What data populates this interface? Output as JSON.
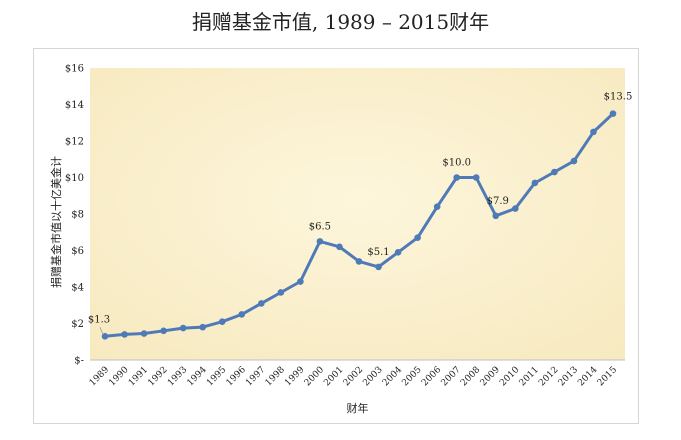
{
  "title": "捐赠基金市值, 1989 – 2015财年",
  "chart_data": {
    "type": "line",
    "title": "捐赠基金市值, 1989 – 2015财年",
    "xlabel": "财年",
    "ylabel": "捐赠基金市值以十亿美金计",
    "categories": [
      "1989",
      "1990",
      "1991",
      "1992",
      "1993",
      "1994",
      "1995",
      "1996",
      "1997",
      "1998",
      "1999",
      "2000",
      "2001",
      "2002",
      "2003",
      "2004",
      "2005",
      "2006",
      "2007",
      "2008",
      "2009",
      "2010",
      "2011",
      "2012",
      "2013",
      "2014",
      "2015"
    ],
    "series": [
      {
        "values": [
          1.3,
          1.4,
          1.45,
          1.6,
          1.75,
          1.8,
          2.1,
          2.5,
          3.1,
          3.7,
          4.3,
          6.5,
          6.2,
          5.4,
          5.1,
          5.9,
          6.7,
          8.4,
          10.0,
          10.0,
          7.9,
          8.3,
          9.7,
          10.3,
          10.9,
          12.5,
          13.5
        ]
      }
    ],
    "data_labels": [
      {
        "index": 0,
        "text": "$1.3"
      },
      {
        "index": 11,
        "text": "$6.5"
      },
      {
        "index": 14,
        "text": "$5.1"
      },
      {
        "index": 18,
        "text": "$10.0"
      },
      {
        "index": 20,
        "text": "$7.9"
      },
      {
        "index": 26,
        "text": "$13.5"
      }
    ],
    "yticks": [
      "$-",
      "$2",
      "$4",
      "$6",
      "$8",
      "$10",
      "$12",
      "$14",
      "$16"
    ],
    "ylim": [
      0,
      16
    ],
    "grid": false,
    "line_color": "#4f7ab8",
    "plot_bg_colors": [
      "#fdf6dc",
      "#f7e9bf"
    ]
  }
}
